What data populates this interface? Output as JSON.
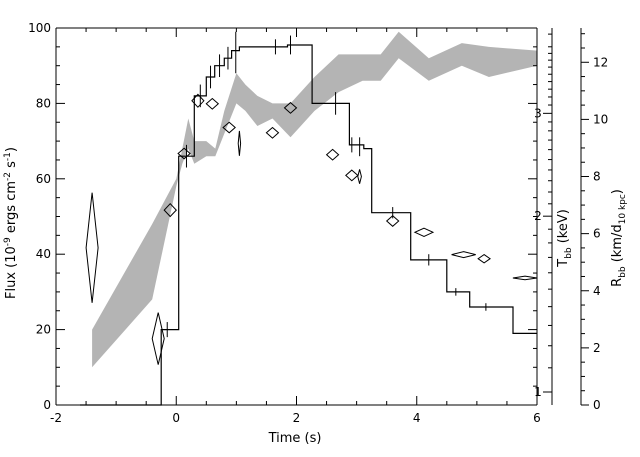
{
  "chart_data": {
    "type": "line",
    "xlabel": "Time (s)",
    "xlim": [
      -2,
      6
    ],
    "xticks": [
      -2,
      0,
      2,
      4,
      6
    ],
    "left_axis": {
      "label_main": "Flux (10",
      "label_sup1": "-9",
      "label_mid": " ergs cm",
      "label_sup2": "-2",
      "label_mid2": " s",
      "label_sup3": "-1",
      "label_end": ")",
      "lim": [
        0,
        100
      ],
      "ticks": [
        0,
        20,
        40,
        60,
        80,
        100
      ]
    },
    "temperature_axis": {
      "label_main": "T",
      "label_sub": "bb",
      "label_end": " (keV)",
      "scale": "log",
      "lim": [
        0.95,
        4.2
      ],
      "ticks": [
        1,
        2,
        3
      ]
    },
    "radius_axis": {
      "label_main": "R",
      "label_sub": "bb",
      "label_mid": " (km/d",
      "label_sub2": "10 kpc",
      "label_end": ")",
      "lim": [
        0,
        13.2
      ],
      "ticks": [
        0,
        2,
        4,
        6,
        8,
        10,
        12
      ]
    },
    "flux_histogram": {
      "name": "Flux",
      "steps": [
        {
          "x0": -1.6,
          "x1": -0.25,
          "y": 0
        },
        {
          "x0": -0.25,
          "x1": 0.04,
          "y": 20
        },
        {
          "x0": 0.04,
          "x1": 0.3,
          "y": 66
        },
        {
          "x0": 0.3,
          "x1": 0.5,
          "y": 82
        },
        {
          "x0": 0.5,
          "x1": 0.64,
          "y": 87
        },
        {
          "x0": 0.64,
          "x1": 0.8,
          "y": 90
        },
        {
          "x0": 0.8,
          "x1": 0.92,
          "y": 92
        },
        {
          "x0": 0.92,
          "x1": 1.05,
          "y": 94
        },
        {
          "x0": 1.05,
          "x1": 1.85,
          "y": 95
        },
        {
          "x0": 1.85,
          "x1": 2.26,
          "y": 95.5
        },
        {
          "x0": 2.26,
          "x1": 2.88,
          "y": 80
        },
        {
          "x0": 2.88,
          "x1": 3.12,
          "y": 69
        },
        {
          "x0": 3.12,
          "x1": 3.25,
          "y": 68
        },
        {
          "x0": 3.25,
          "x1": 3.9,
          "y": 51
        },
        {
          "x0": 3.9,
          "x1": 4.5,
          "y": 38.5
        },
        {
          "x0": 4.5,
          "x1": 4.88,
          "y": 30
        },
        {
          "x0": 4.88,
          "x1": 5.6,
          "y": 26
        },
        {
          "x0": 5.6,
          "x1": 6.0,
          "y": 19
        }
      ],
      "errorbars": [
        {
          "x": -0.15,
          "y": 20,
          "lo": 18,
          "hi": 22
        },
        {
          "x": 0.17,
          "y": 66,
          "lo": 63,
          "hi": 69
        },
        {
          "x": 0.4,
          "y": 82,
          "lo": 79,
          "hi": 85
        },
        {
          "x": 0.57,
          "y": 87,
          "lo": 84,
          "hi": 90
        },
        {
          "x": 0.72,
          "y": 90,
          "lo": 87,
          "hi": 93
        },
        {
          "x": 0.86,
          "y": 92,
          "lo": 89,
          "hi": 95
        },
        {
          "x": 0.99,
          "y": 94,
          "lo": 88,
          "hi": 99
        },
        {
          "x": 1.65,
          "y": 95,
          "lo": 93,
          "hi": 97
        },
        {
          "x": 1.9,
          "y": 95.5,
          "lo": 93,
          "hi": 98
        },
        {
          "x": 2.65,
          "y": 80,
          "lo": 77,
          "hi": 83
        },
        {
          "x": 2.92,
          "y": 69,
          "lo": 67,
          "hi": 71
        },
        {
          "x": 3.05,
          "y": 68,
          "lo": 66,
          "hi": 71
        },
        {
          "x": 3.6,
          "y": 51,
          "lo": 49.5,
          "hi": 52.5
        },
        {
          "x": 4.2,
          "y": 38.5,
          "lo": 37,
          "hi": 40
        },
        {
          "x": 4.65,
          "y": 30,
          "lo": 29,
          "hi": 31
        },
        {
          "x": 5.15,
          "y": 26,
          "lo": 25,
          "hi": 27
        }
      ]
    },
    "temperature_points": {
      "name": "T_bb",
      "points": [
        {
          "x": -1.4,
          "y": 41.7,
          "dx": 0.1,
          "dy": 14.6
        },
        {
          "x": -0.3,
          "y": 17.6,
          "dx": 0.1,
          "dy": 6.9
        },
        {
          "x": -0.1,
          "y": 51.7,
          "dx": 0.1,
          "dy": 1.7
        },
        {
          "x": 0.13,
          "y": 66.7,
          "dx": 0.1,
          "dy": 1.4
        },
        {
          "x": 0.36,
          "y": 80.7,
          "dx": 0.1,
          "dy": 1.7
        },
        {
          "x": 0.6,
          "y": 79.9,
          "dx": 0.1,
          "dy": 1.4
        },
        {
          "x": 0.88,
          "y": 73.6,
          "dx": 0.1,
          "dy": 1.4
        },
        {
          "x": 1.05,
          "y": 69.4,
          "dx": 0.02,
          "dy": 3.3
        },
        {
          "x": 1.6,
          "y": 72.2,
          "dx": 0.1,
          "dy": 1.4
        },
        {
          "x": 1.9,
          "y": 78.8,
          "dx": 0.1,
          "dy": 1.4
        },
        {
          "x": 2.6,
          "y": 66.4,
          "dx": 0.1,
          "dy": 1.4
        },
        {
          "x": 2.92,
          "y": 60.9,
          "dx": 0.1,
          "dy": 1.4
        },
        {
          "x": 3.05,
          "y": 60.6,
          "dx": 0.03,
          "dy": 1.9
        },
        {
          "x": 3.6,
          "y": 48.8,
          "dx": 0.1,
          "dy": 1.4
        },
        {
          "x": 4.12,
          "y": 45.8,
          "dx": 0.15,
          "dy": 1.1
        },
        {
          "x": 4.78,
          "y": 39.9,
          "dx": 0.2,
          "dy": 0.8
        },
        {
          "x": 5.12,
          "y": 38.8,
          "dx": 0.1,
          "dy": 1.1
        },
        {
          "x": 5.8,
          "y": 33.7,
          "dx": 0.2,
          "dy": 0.5
        }
      ]
    },
    "radius_band": {
      "name": "R_bb",
      "x": [
        -1.4,
        -0.4,
        0.0,
        0.1,
        0.2,
        0.3,
        0.5,
        0.65,
        0.8,
        1.0,
        1.15,
        1.35,
        1.6,
        1.9,
        2.3,
        2.7,
        3.1,
        3.4,
        3.7,
        4.2,
        4.75,
        5.2,
        6.0
      ],
      "upper": [
        20,
        48,
        60,
        68,
        76,
        70,
        70,
        68,
        78,
        88,
        85,
        82,
        80,
        80,
        87,
        93,
        93,
        93,
        99,
        92,
        96,
        95,
        94
      ],
      "lower": [
        10,
        28,
        58,
        64,
        68,
        64,
        66,
        66,
        72,
        80,
        78,
        74,
        76,
        71,
        78,
        83,
        86,
        86,
        92,
        86,
        90,
        87,
        90
      ]
    }
  }
}
